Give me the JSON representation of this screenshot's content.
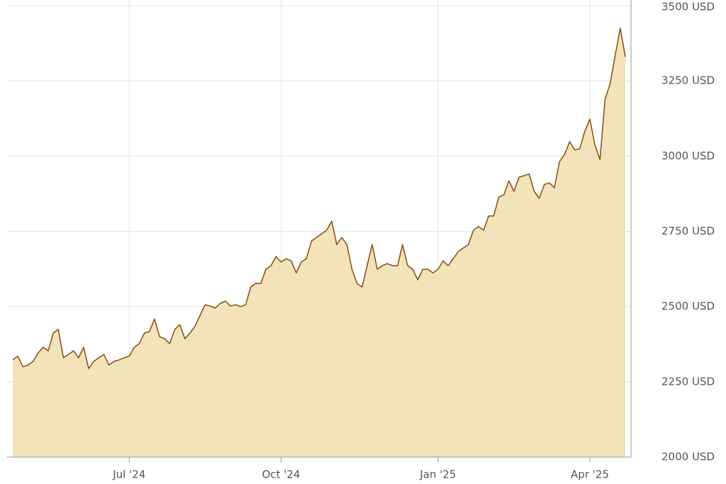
{
  "chart_data": {
    "type": "area",
    "categories": [
      null,
      null,
      null,
      null,
      null,
      null,
      null,
      null,
      null,
      null,
      null,
      null,
      null,
      null,
      null,
      null,
      null,
      null,
      null,
      null,
      null,
      null,
      null,
      "Jul '24",
      null,
      null,
      null,
      null,
      null,
      null,
      null,
      null,
      null,
      null,
      null,
      null,
      null,
      null,
      null,
      null,
      null,
      null,
      null,
      null,
      null,
      null,
      null,
      null,
      null,
      null,
      null,
      null,
      null,
      "Oct '24",
      null,
      null,
      null,
      null,
      null,
      null,
      null,
      null,
      null,
      null,
      null,
      null,
      null,
      null,
      null,
      null,
      null,
      null,
      null,
      null,
      null,
      null,
      null,
      null,
      null,
      null,
      null,
      null,
      null,
      null,
      "Jan '25",
      null,
      null,
      null,
      null,
      null,
      null,
      null,
      null,
      null,
      null,
      null,
      null,
      null,
      null,
      null,
      null,
      null,
      null,
      null,
      null,
      null,
      null,
      null,
      null,
      null,
      null,
      null,
      null,
      null,
      "Apr '25",
      null,
      null,
      null,
      null,
      null,
      null,
      null
    ],
    "values": [
      2323,
      2335,
      2300,
      2306,
      2318,
      2346,
      2365,
      2353,
      2412,
      2424,
      2330,
      2341,
      2353,
      2330,
      2365,
      2294,
      2318,
      2330,
      2341,
      2306,
      2318,
      2323,
      2330,
      2335,
      2365,
      2377,
      2412,
      2417,
      2459,
      2400,
      2393,
      2377,
      2424,
      2440,
      2393,
      2412,
      2435,
      2471,
      2506,
      2502,
      2495,
      2511,
      2518,
      2502,
      2506,
      2500,
      2506,
      2565,
      2577,
      2577,
      2624,
      2636,
      2666,
      2648,
      2659,
      2652,
      2612,
      2648,
      2659,
      2718,
      2730,
      2742,
      2754,
      2784,
      2706,
      2730,
      2706,
      2624,
      2577,
      2565,
      2636,
      2706,
      2624,
      2636,
      2643,
      2636,
      2636,
      2706,
      2636,
      2624,
      2589,
      2624,
      2624,
      2612,
      2624,
      2652,
      2636,
      2659,
      2683,
      2695,
      2706,
      2754,
      2766,
      2754,
      2801,
      2801,
      2864,
      2871,
      2918,
      2883,
      2930,
      2935,
      2941,
      2883,
      2860,
      2906,
      2911,
      2895,
      2982,
      3006,
      3048,
      3020,
      3025,
      3083,
      3123,
      3036,
      2989,
      3189,
      3241,
      3335,
      3425,
      3330
    ],
    "color": "#8a4b0c",
    "fill": "#f3e3bb",
    "ylim": [
      2000,
      3500
    ],
    "yticks": [
      {
        "value": 2000,
        "label": "2000 USD"
      },
      {
        "value": 2250,
        "label": "2250 USD"
      },
      {
        "value": 2500,
        "label": "2500 USD"
      },
      {
        "value": 2750,
        "label": "2750 USD"
      },
      {
        "value": 3000,
        "label": "3000 USD"
      },
      {
        "value": 3250,
        "label": "3250 USD"
      },
      {
        "value": 3500,
        "label": "3500 USD"
      }
    ],
    "grid": true
  }
}
